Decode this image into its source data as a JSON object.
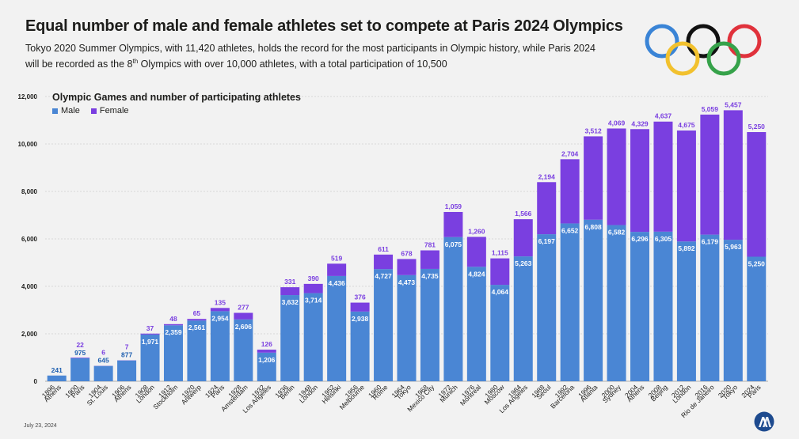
{
  "header": {
    "title": "Equal number of male and female athletes set to compete at Paris 2024 Olympics",
    "subtitle_pre": "Tokyo 2020 Summer Olympics, with 11,420 athletes, holds the record for the most participants in Olympic history, while Paris 2024 will be recorded as the 8",
    "subtitle_sup": "th",
    "subtitle_post": " Olympics with over 10,000 athletes, with a total participation of 10,500"
  },
  "footer": {
    "date": "July 23, 2024"
  },
  "colors": {
    "male": "#4a86d4",
    "female": "#7a3fe0",
    "male_label": "#ffffff",
    "female_label": "#7a3fe0"
  },
  "chart_data": {
    "type": "bar",
    "stacked": true,
    "title": "Olympic Games and number of participating athletes",
    "ylim": [
      0,
      12000
    ],
    "yticks": [
      0,
      2000,
      4000,
      6000,
      8000,
      10000,
      12000
    ],
    "ytick_labels": [
      "0",
      "2,000",
      "4,000",
      "6,000",
      "8,000",
      "10,000",
      "12,000"
    ],
    "grid": true,
    "legend": "top-left",
    "categories": [
      "1896 Athens",
      "1900 Paris",
      "1904 St. Louis",
      "1906 Athens",
      "1908 London",
      "1912 Stockholm",
      "1920 Antwerp",
      "1924 Paris",
      "1928 Amsterdam",
      "1932 Los Angeles",
      "1936 Berlin",
      "1948 London",
      "1952 Helsinki",
      "1956 Melbourne",
      "1960 Rome",
      "1964 Tokyo",
      "1968 Mexico City",
      "1972 Munich",
      "1976 Montreal",
      "1980 Moscow",
      "1984 Los Angeles",
      "1988 Seoul",
      "1992 Barcelona",
      "1996 Atlanta",
      "2000 Sydney",
      "2004 Athens",
      "2008 Beijing",
      "2012 London",
      "2016 Rio de Janeiro",
      "2020 Tokyo",
      "2024 Paris"
    ],
    "years": [
      "1896",
      "1900",
      "1904",
      "1906",
      "1908",
      "1912",
      "1920",
      "1924",
      "1928",
      "1932",
      "1936",
      "1948",
      "1952",
      "1956",
      "1960",
      "1964",
      "1968",
      "1972",
      "1976",
      "1980",
      "1984",
      "1988",
      "1992",
      "1996",
      "2000",
      "2004",
      "2008",
      "2012",
      "2016",
      "2020",
      "2024"
    ],
    "cities": [
      "Athens",
      "Paris",
      "St. Louis",
      "Athens",
      "London",
      "Stockholm",
      "Antwerp",
      "Paris",
      "Amsterdam",
      "Los Angeles",
      "Berlin",
      "London",
      "Helsinki",
      "Melbourne",
      "Rome",
      "Tokyo",
      "Mexico City",
      "Munich",
      "Montreal",
      "Moscow",
      "Los Angeles",
      "Seoul",
      "Barcelona",
      "Atlanta",
      "Sydney",
      "Athens",
      "Beijing",
      "London",
      "Rio de Janeiro",
      "Tokyo",
      "Paris"
    ],
    "series": [
      {
        "name": "Male",
        "values": [
          241,
          975,
          645,
          877,
          1971,
          2359,
          2561,
          2954,
          2606,
          1206,
          3632,
          3714,
          4436,
          2938,
          4727,
          4473,
          4735,
          6075,
          4824,
          4064,
          5263,
          6197,
          6652,
          6808,
          6582,
          6296,
          6305,
          5892,
          6179,
          5963,
          5250
        ]
      },
      {
        "name": "Female",
        "values": [
          null,
          22,
          6,
          7,
          37,
          48,
          65,
          135,
          277,
          126,
          331,
          390,
          519,
          376,
          611,
          678,
          781,
          1059,
          1260,
          1115,
          1566,
          2194,
          2704,
          3512,
          4069,
          4329,
          4637,
          4675,
          5059,
          5457,
          5250
        ]
      }
    ],
    "male_labels": [
      "241",
      "975",
      "645",
      "877",
      "1,971",
      "2,359",
      "2,561",
      "2,954",
      "2,606",
      "1,206",
      "3,632",
      "3,714",
      "4,436",
      "2,938",
      "4,727",
      "4,473",
      "4,735",
      "6,075",
      "4,824",
      "4,064",
      "5,263",
      "6,197",
      "6,652",
      "6,808",
      "6,582",
      "6,296",
      "6,305",
      "5,892",
      "6,179",
      "5,963",
      "5,250"
    ],
    "female_labels": [
      "",
      "22",
      "6",
      "7",
      "37",
      "48",
      "65",
      "135",
      "277",
      "126",
      "331",
      "390",
      "519",
      "376",
      "611",
      "678",
      "781",
      "1,059",
      "1,260",
      "1,115",
      "1,566",
      "2,194",
      "2,704",
      "3,512",
      "4,069",
      "4,329",
      "4,637",
      "4,675",
      "5,059",
      "5,457",
      "5,250"
    ]
  }
}
